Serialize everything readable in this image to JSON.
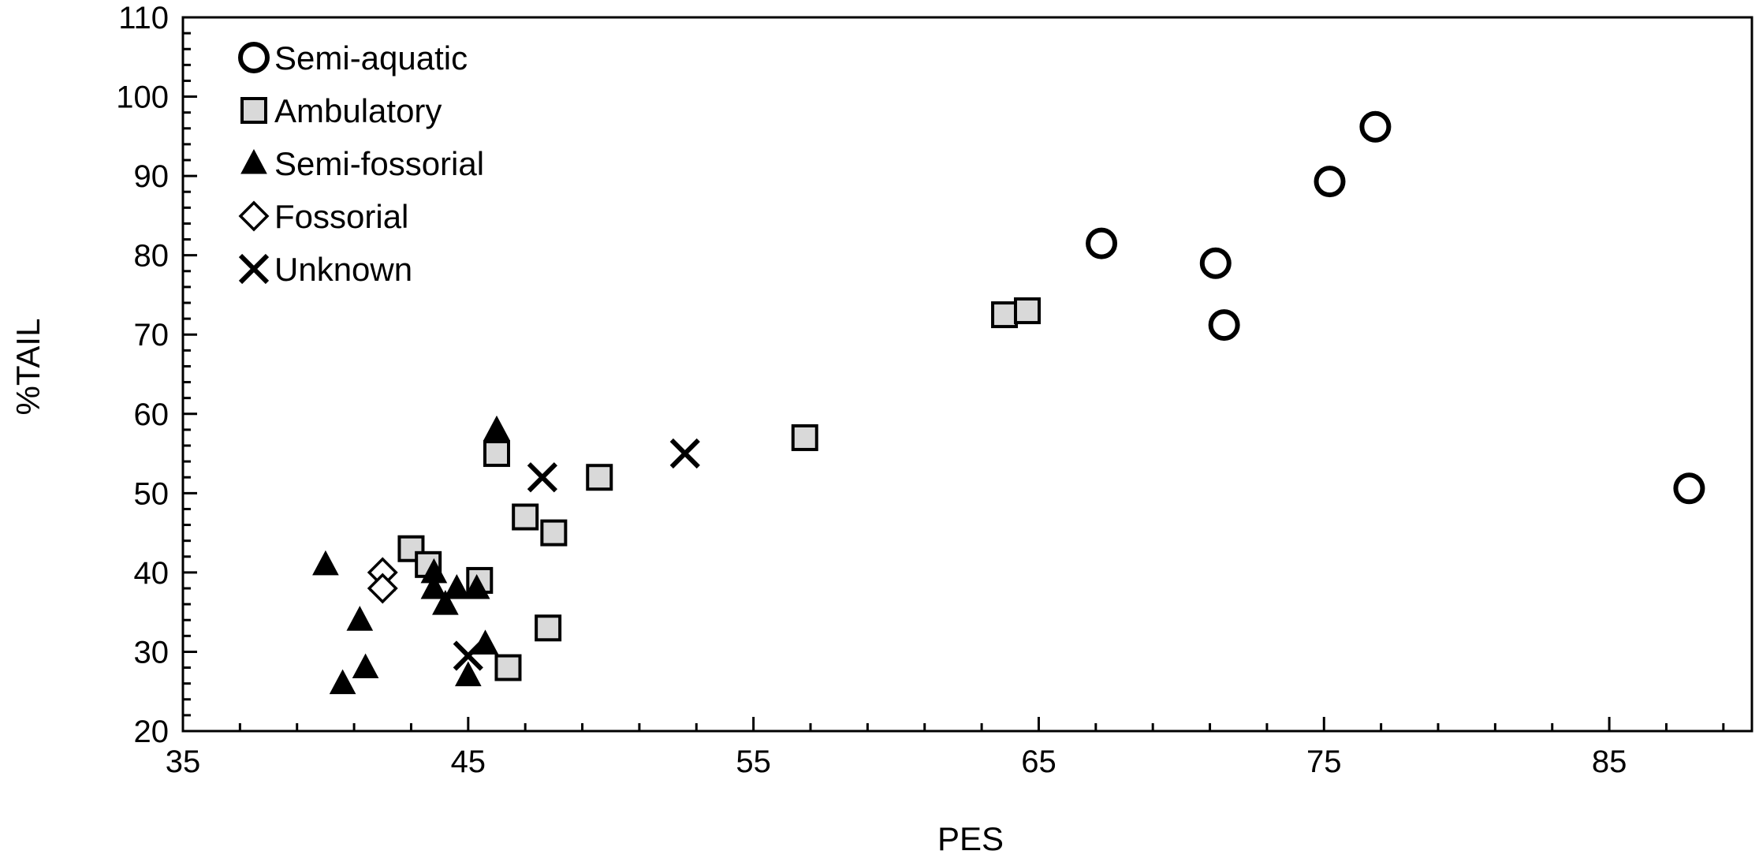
{
  "chart_data": {
    "type": "scatter",
    "title": "",
    "xlabel": "PES",
    "ylabel": "%TAIL",
    "xlim": [
      35,
      90
    ],
    "ylim": [
      20,
      110
    ],
    "x_ticks": [
      35,
      45,
      55,
      65,
      75,
      85
    ],
    "y_ticks": [
      20,
      30,
      40,
      50,
      60,
      70,
      80,
      90,
      100,
      110
    ],
    "x_tick_labels": [
      "35",
      "45",
      "55",
      "65",
      "75",
      "85"
    ],
    "y_tick_labels": [
      "20",
      "30",
      "40",
      "50",
      "60",
      "70",
      "80",
      "90",
      "100",
      "110"
    ],
    "grid": false,
    "legend_position": "top-left",
    "series": [
      {
        "name": "Semi-aquatic",
        "marker": "circle-open",
        "fill": "#ffffff",
        "points": [
          {
            "x": 67.2,
            "y": 81.5
          },
          {
            "x": 71.2,
            "y": 79.0
          },
          {
            "x": 71.5,
            "y": 71.2
          },
          {
            "x": 75.2,
            "y": 89.3
          },
          {
            "x": 76.8,
            "y": 96.2
          },
          {
            "x": 87.8,
            "y": 50.6
          }
        ]
      },
      {
        "name": "Ambulatory",
        "marker": "square",
        "fill": "#d9d9d9",
        "points": [
          {
            "x": 43.0,
            "y": 43.0
          },
          {
            "x": 43.6,
            "y": 41.0
          },
          {
            "x": 45.4,
            "y": 39.0
          },
          {
            "x": 46.0,
            "y": 55.0
          },
          {
            "x": 46.4,
            "y": 28.0
          },
          {
            "x": 47.0,
            "y": 47.0
          },
          {
            "x": 47.8,
            "y": 33.0
          },
          {
            "x": 48.0,
            "y": 45.0
          },
          {
            "x": 49.6,
            "y": 52.0
          },
          {
            "x": 56.8,
            "y": 57.0
          },
          {
            "x": 63.8,
            "y": 72.5
          },
          {
            "x": 64.6,
            "y": 73.0
          }
        ]
      },
      {
        "name": "Semi-fossorial",
        "marker": "triangle",
        "fill": "#000000",
        "points": [
          {
            "x": 40.0,
            "y": 41.0
          },
          {
            "x": 40.6,
            "y": 26.0
          },
          {
            "x": 41.2,
            "y": 34.0
          },
          {
            "x": 41.4,
            "y": 28.0
          },
          {
            "x": 42.0,
            "y": 39.0
          },
          {
            "x": 43.8,
            "y": 40.0
          },
          {
            "x": 43.8,
            "y": 38.0
          },
          {
            "x": 44.2,
            "y": 36.0
          },
          {
            "x": 44.6,
            "y": 38.0
          },
          {
            "x": 45.3,
            "y": 38.0
          },
          {
            "x": 45.0,
            "y": 27.0
          },
          {
            "x": 45.6,
            "y": 31.0
          },
          {
            "x": 46.0,
            "y": 58.0
          }
        ]
      },
      {
        "name": "Fossorial",
        "marker": "diamond-open",
        "fill": "#ffffff",
        "points": [
          {
            "x": 42.0,
            "y": 40.0
          },
          {
            "x": 42.0,
            "y": 38.0
          }
        ]
      },
      {
        "name": "Unknown",
        "marker": "x",
        "fill": "none",
        "points": [
          {
            "x": 45.0,
            "y": 29.5
          },
          {
            "x": 47.6,
            "y": 52.0
          },
          {
            "x": 52.6,
            "y": 55.0
          }
        ]
      }
    ]
  }
}
